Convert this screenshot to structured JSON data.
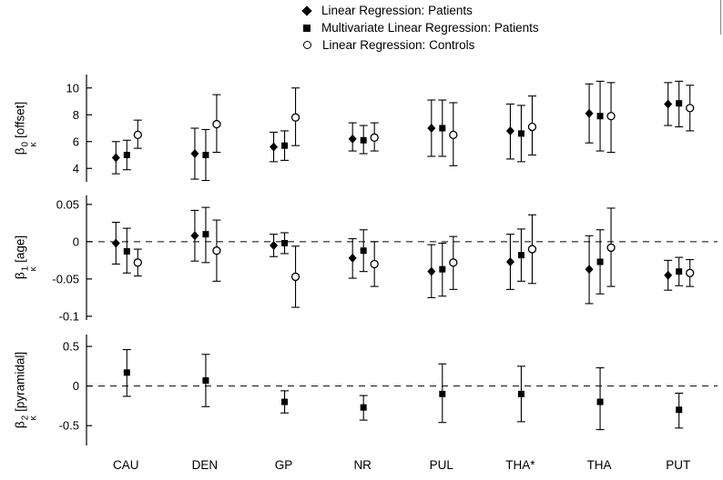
{
  "colors": {
    "foreground": "#000000",
    "background": "#ffffff"
  },
  "legend": {
    "items": [
      {
        "marker": "diamond",
        "label": "Linear Regression: Patients"
      },
      {
        "marker": "square",
        "label": "Multivariate Linear Regression: Patients"
      },
      {
        "marker": "circle",
        "label": "Linear Regression: Controls"
      }
    ]
  },
  "chart_data": [
    {
      "type": "errorbar",
      "ylabel": {
        "beta": "β",
        "sup": "0",
        "sub": "κ",
        "unit": "[offset]"
      },
      "ylim": [
        3,
        11
      ],
      "yticks": [
        10,
        8,
        6,
        4
      ],
      "ytick_labels": [
        "10",
        "8",
        "6",
        "4"
      ],
      "zero_line": false,
      "grid": false,
      "legend_position": "top",
      "categories": [
        "CAU",
        "DEN",
        "GP",
        "NR",
        "PUL",
        "THA*",
        "THA",
        "PUT"
      ],
      "series": [
        {
          "name": "Linear Regression: Patients",
          "marker": "diamond",
          "values": [
            4.8,
            5.1,
            5.6,
            6.2,
            7.0,
            6.8,
            8.1,
            8.8
          ],
          "lower": [
            3.6,
            3.2,
            4.5,
            5.3,
            4.9,
            4.7,
            5.9,
            7.2
          ],
          "upper": [
            6.0,
            7.0,
            6.7,
            7.4,
            9.1,
            8.8,
            10.3,
            10.4
          ]
        },
        {
          "name": "Multivariate Linear Regression: Patients",
          "marker": "square",
          "values": [
            5.0,
            5.0,
            5.7,
            6.1,
            7.0,
            6.6,
            7.9,
            8.85
          ],
          "lower": [
            3.9,
            3.1,
            4.6,
            5.1,
            4.9,
            4.5,
            5.3,
            7.1
          ],
          "upper": [
            6.1,
            6.9,
            6.8,
            7.2,
            9.1,
            8.7,
            10.5,
            10.5
          ]
        },
        {
          "name": "Linear Regression: Controls",
          "marker": "circle",
          "values": [
            6.5,
            7.3,
            7.8,
            6.3,
            6.5,
            7.1,
            7.9,
            8.5
          ],
          "lower": [
            5.5,
            5.2,
            5.7,
            5.3,
            4.2,
            5.0,
            5.2,
            6.8
          ],
          "upper": [
            7.6,
            9.5,
            10.0,
            7.4,
            8.9,
            9.4,
            10.4,
            10.2
          ]
        }
      ]
    },
    {
      "type": "errorbar",
      "ylabel": {
        "beta": "β",
        "sup": "1",
        "sub": "κ",
        "unit": "[age]"
      },
      "ylim": [
        -0.105,
        0.062
      ],
      "yticks": [
        0.05,
        0,
        -0.05,
        -0.1
      ],
      "ytick_labels": [
        "0.05",
        "0",
        "-0.05",
        "-0.1"
      ],
      "zero_line": true,
      "grid": false,
      "categories": [
        "CAU",
        "DEN",
        "GP",
        "NR",
        "PUL",
        "THA*",
        "THA",
        "PUT"
      ],
      "series": [
        {
          "name": "Linear Regression: Patients",
          "marker": "diamond",
          "values": [
            -0.002,
            0.008,
            -0.005,
            -0.022,
            -0.04,
            -0.027,
            -0.037,
            -0.045
          ],
          "lower": [
            -0.03,
            -0.026,
            -0.02,
            -0.049,
            -0.075,
            -0.064,
            -0.083,
            -0.065
          ],
          "upper": [
            0.026,
            0.042,
            0.01,
            0.004,
            -0.004,
            0.01,
            0.008,
            -0.025
          ]
        },
        {
          "name": "Multivariate Linear Regression: Patients",
          "marker": "square",
          "values": [
            -0.013,
            0.01,
            -0.002,
            -0.012,
            -0.037,
            -0.018,
            -0.027,
            -0.04
          ],
          "lower": [
            -0.042,
            -0.028,
            -0.016,
            -0.04,
            -0.073,
            -0.053,
            -0.07,
            -0.059
          ],
          "upper": [
            0.018,
            0.046,
            0.012,
            0.016,
            -0.002,
            0.017,
            0.016,
            -0.021
          ]
        },
        {
          "name": "Linear Regression: Controls",
          "marker": "circle",
          "values": [
            -0.028,
            -0.012,
            -0.047,
            -0.03,
            -0.028,
            -0.01,
            -0.008,
            -0.042
          ],
          "lower": [
            -0.046,
            -0.053,
            -0.088,
            -0.06,
            -0.064,
            -0.056,
            -0.06,
            -0.06
          ],
          "upper": [
            -0.01,
            0.029,
            -0.006,
            0.0,
            0.007,
            0.036,
            0.045,
            -0.024
          ]
        }
      ]
    },
    {
      "type": "errorbar",
      "ylabel": {
        "beta": "β",
        "sup": "2",
        "sub": "κ",
        "unit": "[pyramidal]"
      },
      "ylim": [
        -0.75,
        0.65
      ],
      "yticks": [
        0.5,
        0,
        -0.5
      ],
      "ytick_labels": [
        "0.5",
        "0",
        "-0.5"
      ],
      "zero_line": true,
      "grid": false,
      "categories": [
        "CAU",
        "DEN",
        "GP",
        "NR",
        "PUL",
        "THA*",
        "THA",
        "PUT"
      ],
      "series": [
        {
          "name": "Multivariate Linear Regression: Patients",
          "marker": "square",
          "values": [
            0.17,
            0.07,
            -0.2,
            -0.27,
            -0.1,
            -0.1,
            -0.2,
            -0.3
          ],
          "lower": [
            -0.13,
            -0.26,
            -0.34,
            -0.43,
            -0.46,
            -0.45,
            -0.55,
            -0.53
          ],
          "upper": [
            0.46,
            0.4,
            -0.06,
            -0.12,
            0.28,
            0.25,
            0.23,
            -0.09
          ]
        }
      ]
    }
  ]
}
